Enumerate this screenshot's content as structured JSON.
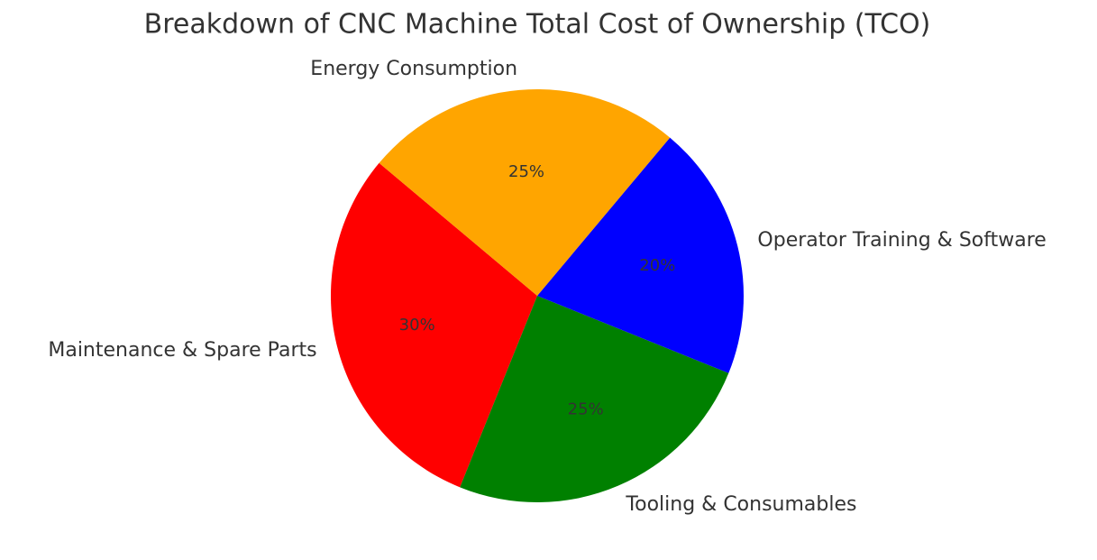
{
  "chart_data": {
    "type": "pie",
    "title": "Breakdown of CNC Machine Total Cost of Ownership (TCO)",
    "categories": [
      "Maintenance & Spare Parts",
      "Tooling & Consumables",
      "Operator Training & Software",
      "Energy Consumption"
    ],
    "values": [
      30,
      25,
      20,
      25
    ],
    "value_labels": [
      "30%",
      "25%",
      "20%",
      "25%"
    ],
    "colors": [
      "#ff0000",
      "#008000",
      "#0000ff",
      "#ffa500"
    ],
    "startangle": 140
  }
}
